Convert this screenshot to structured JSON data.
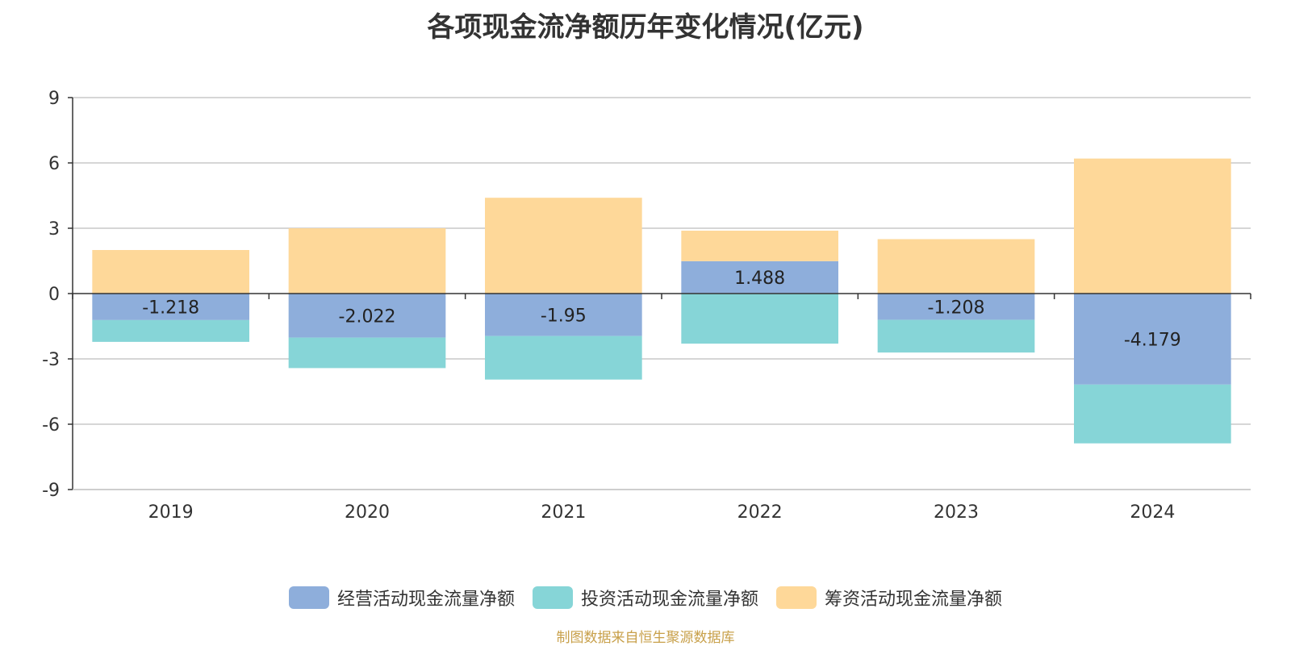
{
  "chart_data": {
    "type": "bar",
    "stacked": true,
    "title": "各项现金流净额历年变化情况(亿元)",
    "categories": [
      "2019",
      "2020",
      "2021",
      "2022",
      "2023",
      "2024"
    ],
    "ylim": [
      -9,
      9
    ],
    "yticks": [
      9,
      6,
      3,
      0,
      -3,
      -6,
      -9
    ],
    "grid": true,
    "legend_position": "bottom",
    "series": [
      {
        "name": "经营活动现金流量净额",
        "color": "#8eaedb",
        "values": [
          -1.218,
          -2.022,
          -1.95,
          1.488,
          -1.208,
          -4.179
        ],
        "show_labels": true
      },
      {
        "name": "投资活动现金流量净额",
        "color": "#86d5d7",
        "values": [
          -1.0,
          -1.4,
          -2.0,
          -2.3,
          -1.5,
          -2.7
        ],
        "show_labels": false
      },
      {
        "name": "筹资活动现金流量净额",
        "color": "#fed899",
        "values": [
          2.0,
          3.0,
          4.4,
          1.4,
          2.5,
          6.2
        ],
        "show_labels": false
      }
    ]
  },
  "source_note": "制图数据来自恒生聚源数据库"
}
